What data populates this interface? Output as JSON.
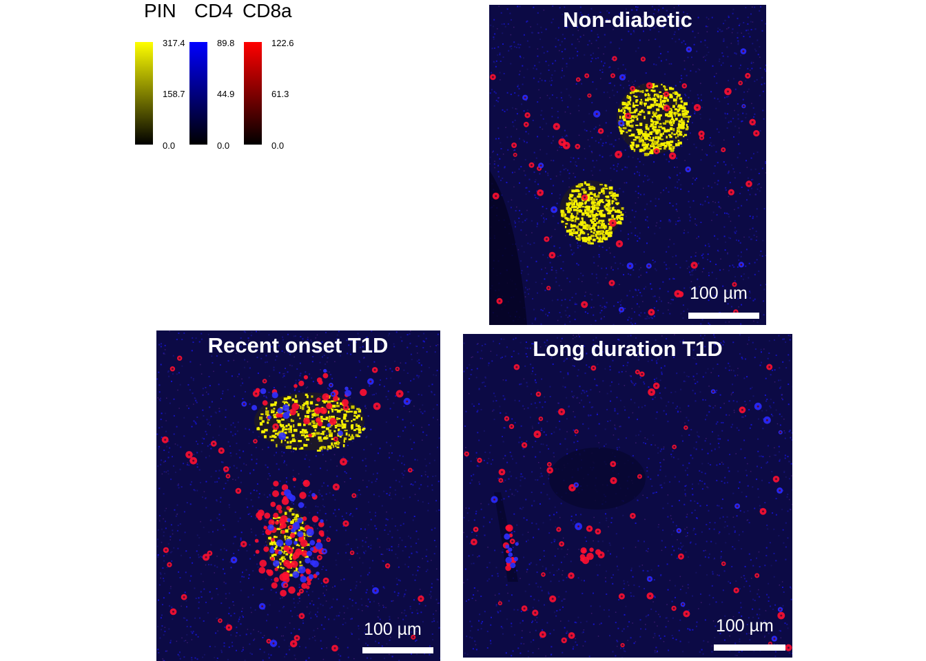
{
  "legend": {
    "channels": [
      {
        "name": "PIN",
        "color": "#ffff00",
        "max": "317.4",
        "mid": "158.7",
        "min": "0.0"
      },
      {
        "name": "CD4",
        "color": "#0000ff",
        "max": "89.8",
        "mid": "44.9",
        "min": "0.0"
      },
      {
        "name": "CD8a",
        "color": "#ff0000",
        "max": "122.6",
        "mid": "61.3",
        "min": "0.0"
      }
    ]
  },
  "panels": [
    {
      "title": "Non-diabetic",
      "scalebar": "100  µm"
    },
    {
      "title": "Recent onset T1D",
      "scalebar": "100  µm"
    },
    {
      "title": "Long duration T1D",
      "scalebar": "100  µm"
    }
  ]
}
